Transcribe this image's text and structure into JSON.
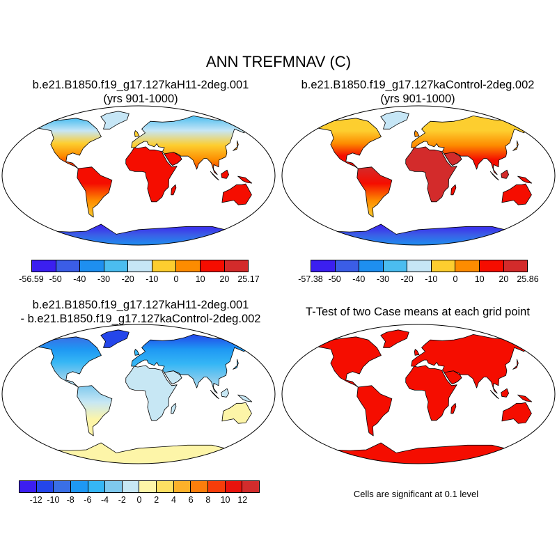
{
  "main_title": "ANN TREFMNAV (C)",
  "panels": [
    {
      "id": "case1",
      "title_lines": [
        "b.e21.B1850.f19_g17.127kaH11-2deg.001",
        "(yrs 901-1000)"
      ]
    },
    {
      "id": "control",
      "title_lines": [
        "b.e21.B1850.f19_g17.127kaControl-2deg.002",
        "(yrs 901-1000)"
      ]
    },
    {
      "id": "diff",
      "title_lines": [
        "b.e21.B1850.f19_g17.127kaH11-2deg.001",
        "- b.e21.B1850.f19_g17.127kaControl-2deg.002"
      ]
    },
    {
      "id": "ttest",
      "title_lines": [
        "T-Test of two Case means at each grid point"
      ]
    }
  ],
  "colorbars": [
    {
      "id": "case1",
      "labels": [
        "-56.59",
        "-50",
        "-40",
        "-30",
        "-20",
        "-10",
        "0",
        "10",
        "20",
        "25.17"
      ],
      "colors": [
        "#3b1ff0",
        "#3b5de6",
        "#1e8ff0",
        "#4bbdf0",
        "#c6e6f6",
        "#fdce2f",
        "#fd8c00",
        "#f50d00",
        "#d32b2b"
      ]
    },
    {
      "id": "control",
      "labels": [
        "-57.38",
        "-50",
        "-40",
        "-30",
        "-20",
        "-10",
        "0",
        "10",
        "20",
        "25.86"
      ],
      "colors": [
        "#3b1ff0",
        "#3b5de6",
        "#1e8ff0",
        "#4bbdf0",
        "#c6e6f6",
        "#fdce2f",
        "#fd8c00",
        "#f50d00",
        "#d32b2b"
      ]
    },
    {
      "id": "diff",
      "labels": [
        "-12",
        "-10",
        "-8",
        "-6",
        "-4",
        "-2",
        "0",
        "2",
        "4",
        "6",
        "8",
        "10",
        "12"
      ],
      "colors": [
        "#3c1ef0",
        "#2446ea",
        "#3a6fe6",
        "#1e98f3",
        "#35b6f5",
        "#7fc9ee",
        "#c7e7f4",
        "#fdf5a8",
        "#fde063",
        "#fcb12a",
        "#fb7e0c",
        "#f63d0a",
        "#e8130d",
        "#d22c2c"
      ]
    }
  ],
  "significance_note": "Cells are significant at 0.1 level"
}
